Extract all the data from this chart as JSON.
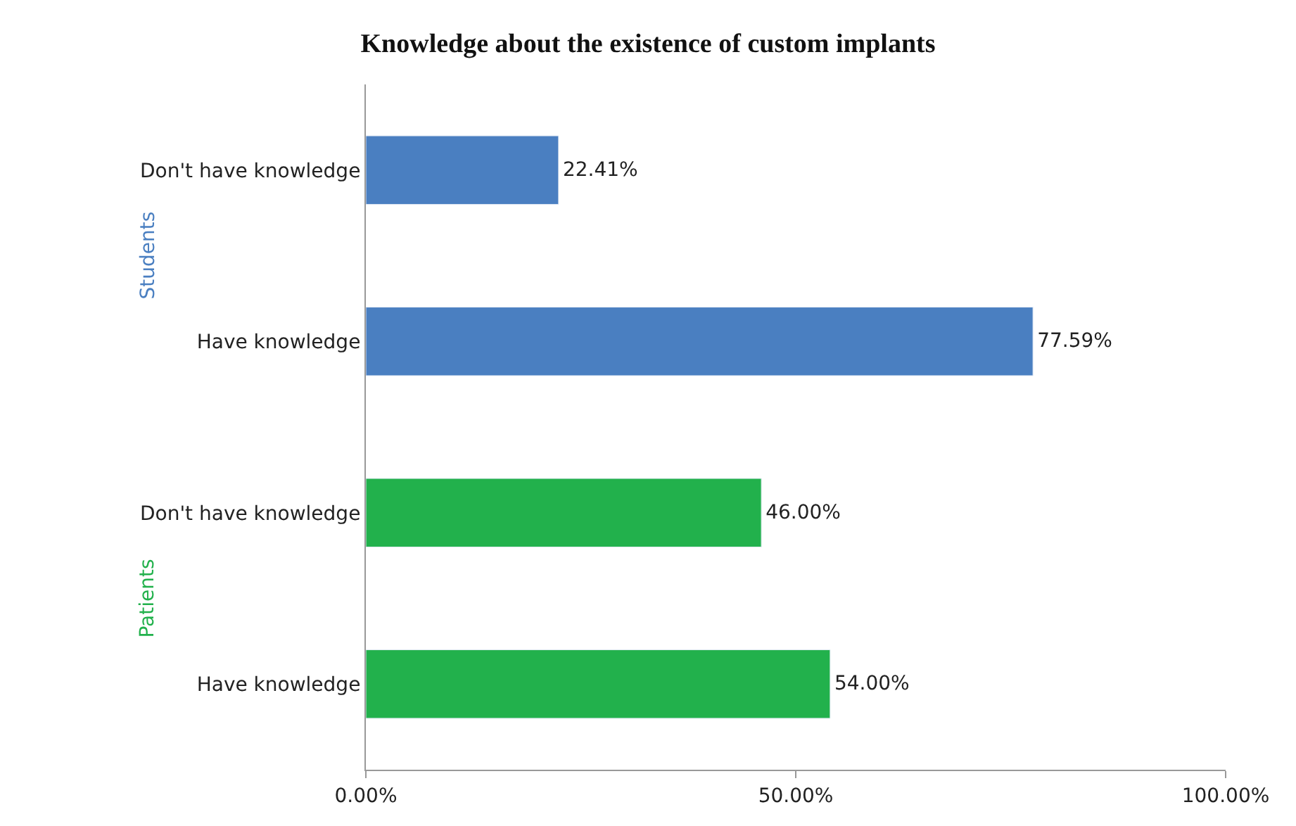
{
  "chart_data": {
    "type": "bar",
    "orientation": "horizontal",
    "title": "Knowledge about the existence of custom implants",
    "categories": [
      "Don't have knowledge",
      "Have knowledge",
      "Don't have knowledge",
      "Have knowledge"
    ],
    "series": [
      {
        "name": "Students",
        "color": "#4a7fc1",
        "values": [
          22.41,
          77.59,
          null,
          null
        ],
        "value_labels": [
          "22.41%",
          "77.59%",
          null,
          null
        ]
      },
      {
        "name": "Patients",
        "color": "#22b14c",
        "values": [
          null,
          null,
          46.0,
          54.0
        ],
        "value_labels": [
          null,
          null,
          "46.00%",
          "54.00%"
        ]
      }
    ],
    "xlim": [
      0,
      100
    ],
    "xticks": [
      {
        "value": 0,
        "label": "0.00%"
      },
      {
        "value": 50,
        "label": "50.00%"
      },
      {
        "value": 100,
        "label": "100.00%"
      }
    ],
    "legend": false
  }
}
